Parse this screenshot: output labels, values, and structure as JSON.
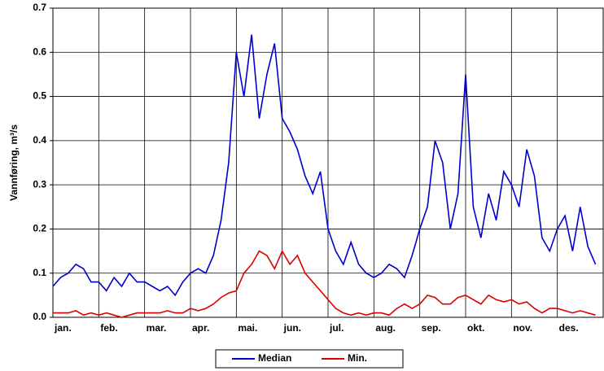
{
  "chart_data": {
    "type": "line",
    "y_label": "Vannføring, m³/s",
    "categories": [
      "jan.",
      null,
      null,
      null,
      null,
      null,
      "feb.",
      null,
      null,
      null,
      null,
      null,
      "mar.",
      null,
      null,
      null,
      null,
      null,
      "apr.",
      null,
      null,
      null,
      null,
      null,
      "mai.",
      null,
      null,
      null,
      null,
      null,
      "jun.",
      null,
      null,
      null,
      null,
      null,
      "jul.",
      null,
      null,
      null,
      null,
      null,
      "aug.",
      null,
      null,
      null,
      null,
      null,
      "sep.",
      null,
      null,
      null,
      null,
      null,
      "okt.",
      null,
      null,
      null,
      null,
      null,
      "nov.",
      null,
      null,
      null,
      null,
      null,
      "des.",
      null,
      null,
      null,
      null,
      null
    ],
    "series": [
      {
        "name": "Median",
        "color": "#0000cc",
        "values": [
          0.07,
          0.09,
          0.1,
          0.12,
          0.11,
          0.08,
          0.08,
          0.06,
          0.09,
          0.07,
          0.1,
          0.08,
          0.08,
          0.07,
          0.06,
          0.07,
          0.05,
          0.08,
          0.1,
          0.11,
          0.1,
          0.14,
          0.22,
          0.35,
          0.6,
          0.5,
          0.64,
          0.45,
          0.55,
          0.62,
          0.45,
          0.42,
          0.38,
          0.32,
          0.28,
          0.33,
          0.2,
          0.15,
          0.12,
          0.17,
          0.12,
          0.1,
          0.09,
          0.1,
          0.12,
          0.11,
          0.09,
          0.14,
          0.2,
          0.25,
          0.4,
          0.35,
          0.2,
          0.28,
          0.55,
          0.25,
          0.18,
          0.28,
          0.22,
          0.33,
          0.3,
          0.25,
          0.38,
          0.32,
          0.18,
          0.15,
          0.2,
          0.23,
          0.15,
          0.25,
          0.16,
          0.12
        ]
      },
      {
        "name": "Min.",
        "color": "#dd0000",
        "values": [
          0.01,
          0.01,
          0.01,
          0.015,
          0.005,
          0.01,
          0.005,
          0.01,
          0.005,
          0.0,
          0.005,
          0.01,
          0.01,
          0.01,
          0.01,
          0.015,
          0.01,
          0.01,
          0.02,
          0.015,
          0.02,
          0.03,
          0.045,
          0.055,
          0.06,
          0.1,
          0.12,
          0.15,
          0.14,
          0.11,
          0.15,
          0.12,
          0.14,
          0.1,
          0.08,
          0.06,
          0.04,
          0.02,
          0.01,
          0.005,
          0.01,
          0.005,
          0.01,
          0.01,
          0.005,
          0.02,
          0.03,
          0.02,
          0.03,
          0.05,
          0.045,
          0.03,
          0.03,
          0.045,
          0.05,
          0.04,
          0.03,
          0.05,
          0.04,
          0.035,
          0.04,
          0.03,
          0.035,
          0.02,
          0.01,
          0.02,
          0.02,
          0.015,
          0.01,
          0.015,
          0.01,
          0.005
        ]
      }
    ],
    "ylim": [
      0,
      0.7
    ],
    "yticks": [
      {
        "value": 0,
        "label": "0.0"
      },
      0.1,
      0.2,
      0.3,
      0.4,
      0.5,
      0.6,
      0.7
    ],
    "grid": true
  }
}
